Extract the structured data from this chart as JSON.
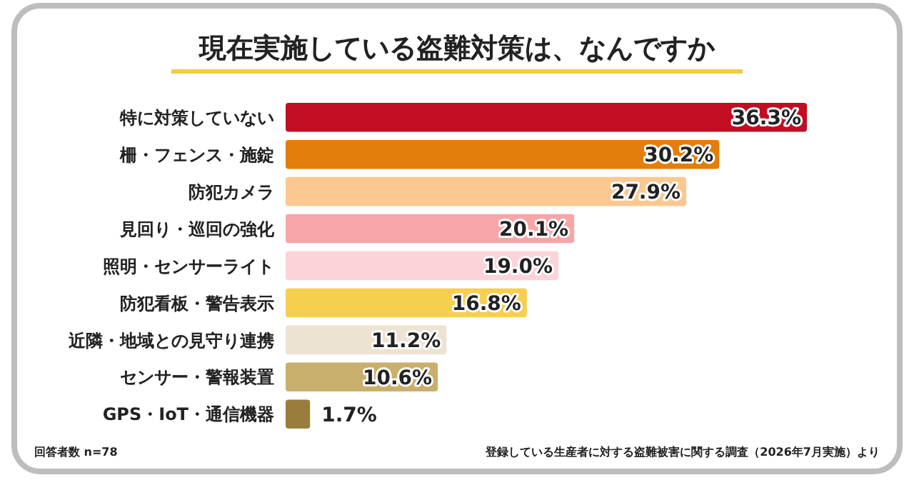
{
  "chart_data": {
    "type": "bar",
    "orientation": "horizontal",
    "title": "現在実施している盗難対策は、なんですか",
    "categories": [
      "特に対策していない",
      "柵・フェンス・施錠",
      "防犯カメラ",
      "見回り・巡回の強化",
      "照明・センサーライト",
      "防犯看板・警告表示",
      "近隣・地域との見守り連携",
      "センサー・警報装置",
      "GPS・IoT・通信機器"
    ],
    "values": [
      36.3,
      30.2,
      27.9,
      20.1,
      19.0,
      16.8,
      11.2,
      10.6,
      1.7
    ],
    "colors": [
      "#c20e23",
      "#e37d0c",
      "#fbc891",
      "#f8a5a8",
      "#fbd3d8",
      "#f6cf4e",
      "#ede3d3",
      "#c9af6e",
      "#9a7d3c"
    ],
    "value_labels": [
      "36.3%",
      "30.2%",
      "27.9%",
      "20.1%",
      "19.0%",
      "16.8%",
      "11.2%",
      "10.6%",
      "1.7%"
    ],
    "annotations": [
      "回答者数 n=78",
      "登録している生産者に対する盗難被害に関する調査（2026年7月実施）より"
    ]
  }
}
